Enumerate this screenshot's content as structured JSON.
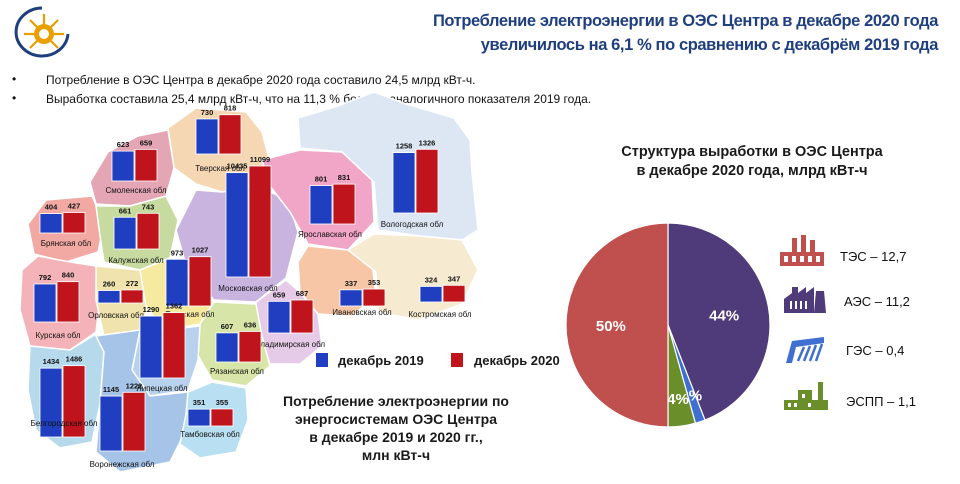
{
  "header": {
    "title_line1": "Потребление электроэнергии в ОЭС Центра в декабре 2020 года",
    "title_line2": "увеличилось на 6,1 % по сравнению с декабрём 2019 года"
  },
  "bullets": [
    "Потребление  в  ОЭС  Центра  в декабре  2020  года  составило  24,5  млрд  кВт-ч.",
    "Выработка  составила  25,4 млрд  кВт-ч,  что  на  11,3 %  больше  аналогичного  показателя  2019 года."
  ],
  "colors": {
    "dec2019": "#1f3fc0",
    "dec2020": "#c0141c",
    "title": "#1f3f7f"
  },
  "map_legend": {
    "dec2019": "декабрь 2019",
    "dec2020": "декабрь 2020"
  },
  "map_caption": [
    "Потребление электроэнергии по",
    "энергосистемам ОЭС Центра",
    "в декабре 2019 и 2020 гг.,",
    "млн кВт-ч"
  ],
  "pie_title": [
    "Структура выработки в ОЭС Центра",
    "в декабре 2020 года, млрд кВт-ч"
  ],
  "pie_legend": [
    {
      "label": "ТЭС – 12,7",
      "icon": "thermal-plant-icon",
      "color": "#c0504d"
    },
    {
      "label": "АЭС – 11,2",
      "icon": "nuclear-plant-icon",
      "color": "#4f3a7a"
    },
    {
      "label": "ГЭС – 0,4",
      "icon": "hydro-plant-icon",
      "color": "#3f6fd0"
    },
    {
      "label": "ЭСПП – 1,1",
      "icon": "industrial-plant-icon",
      "color": "#6a8f2a"
    }
  ],
  "chart_data": [
    {
      "type": "bar",
      "units": "млн кВт-ч",
      "series_names": [
        "декабрь 2019",
        "декабрь 2020"
      ],
      "regions": [
        {
          "name": "Тверская обл",
          "v2019": 730,
          "v2020": 818
        },
        {
          "name": "Смоленская обл",
          "v2019": 623,
          "v2020": 659
        },
        {
          "name": "Брянская обл",
          "v2019": 404,
          "v2020": 427
        },
        {
          "name": "Калужская обл",
          "v2019": 661,
          "v2020": 743
        },
        {
          "name": "Московская обл",
          "v2019": 10435,
          "v2020": 11099
        },
        {
          "name": "Ярославская обл",
          "v2019": 801,
          "v2020": 831
        },
        {
          "name": "Вологодская обл",
          "v2019": 1258,
          "v2020": 1326
        },
        {
          "name": "Курская обл",
          "v2019": 792,
          "v2020": 840
        },
        {
          "name": "Орловская обл",
          "v2019": 260,
          "v2020": 272
        },
        {
          "name": "Тульская обл",
          "v2019": 973,
          "v2020": 1027
        },
        {
          "name": "Ивановская обл",
          "v2019": 337,
          "v2020": 353
        },
        {
          "name": "Костромская обл",
          "v2019": 324,
          "v2020": 347
        },
        {
          "name": "Владимирская обл",
          "v2019": 659,
          "v2020": 687
        },
        {
          "name": "Рязанская обл",
          "v2019": 607,
          "v2020": 636
        },
        {
          "name": "Липецкая обл",
          "v2019": 1290,
          "v2020": 1362
        },
        {
          "name": "Белгородская обл",
          "v2019": 1434,
          "v2020": 1486
        },
        {
          "name": "Воронежская обл",
          "v2019": 1145,
          "v2020": 1222
        },
        {
          "name": "Тамбовская обл",
          "v2019": 351,
          "v2020": 355
        }
      ]
    },
    {
      "type": "pie",
      "title": "Структура выработки в ОЭС Центра в декабре 2020 года, млрд кВт-ч",
      "slices": [
        {
          "name": "ТЭС",
          "value": 12.7,
          "percent": "50%",
          "color": "#c0504d"
        },
        {
          "name": "АЭС",
          "value": 11.2,
          "percent": "44%",
          "color": "#4f3a7a"
        },
        {
          "name": "ГЭС",
          "value": 0.4,
          "percent": "2%",
          "color": "#3f6fd0"
        },
        {
          "name": "ЭСПП",
          "value": 1.1,
          "percent": "4%",
          "color": "#6a8f2a"
        }
      ]
    }
  ]
}
